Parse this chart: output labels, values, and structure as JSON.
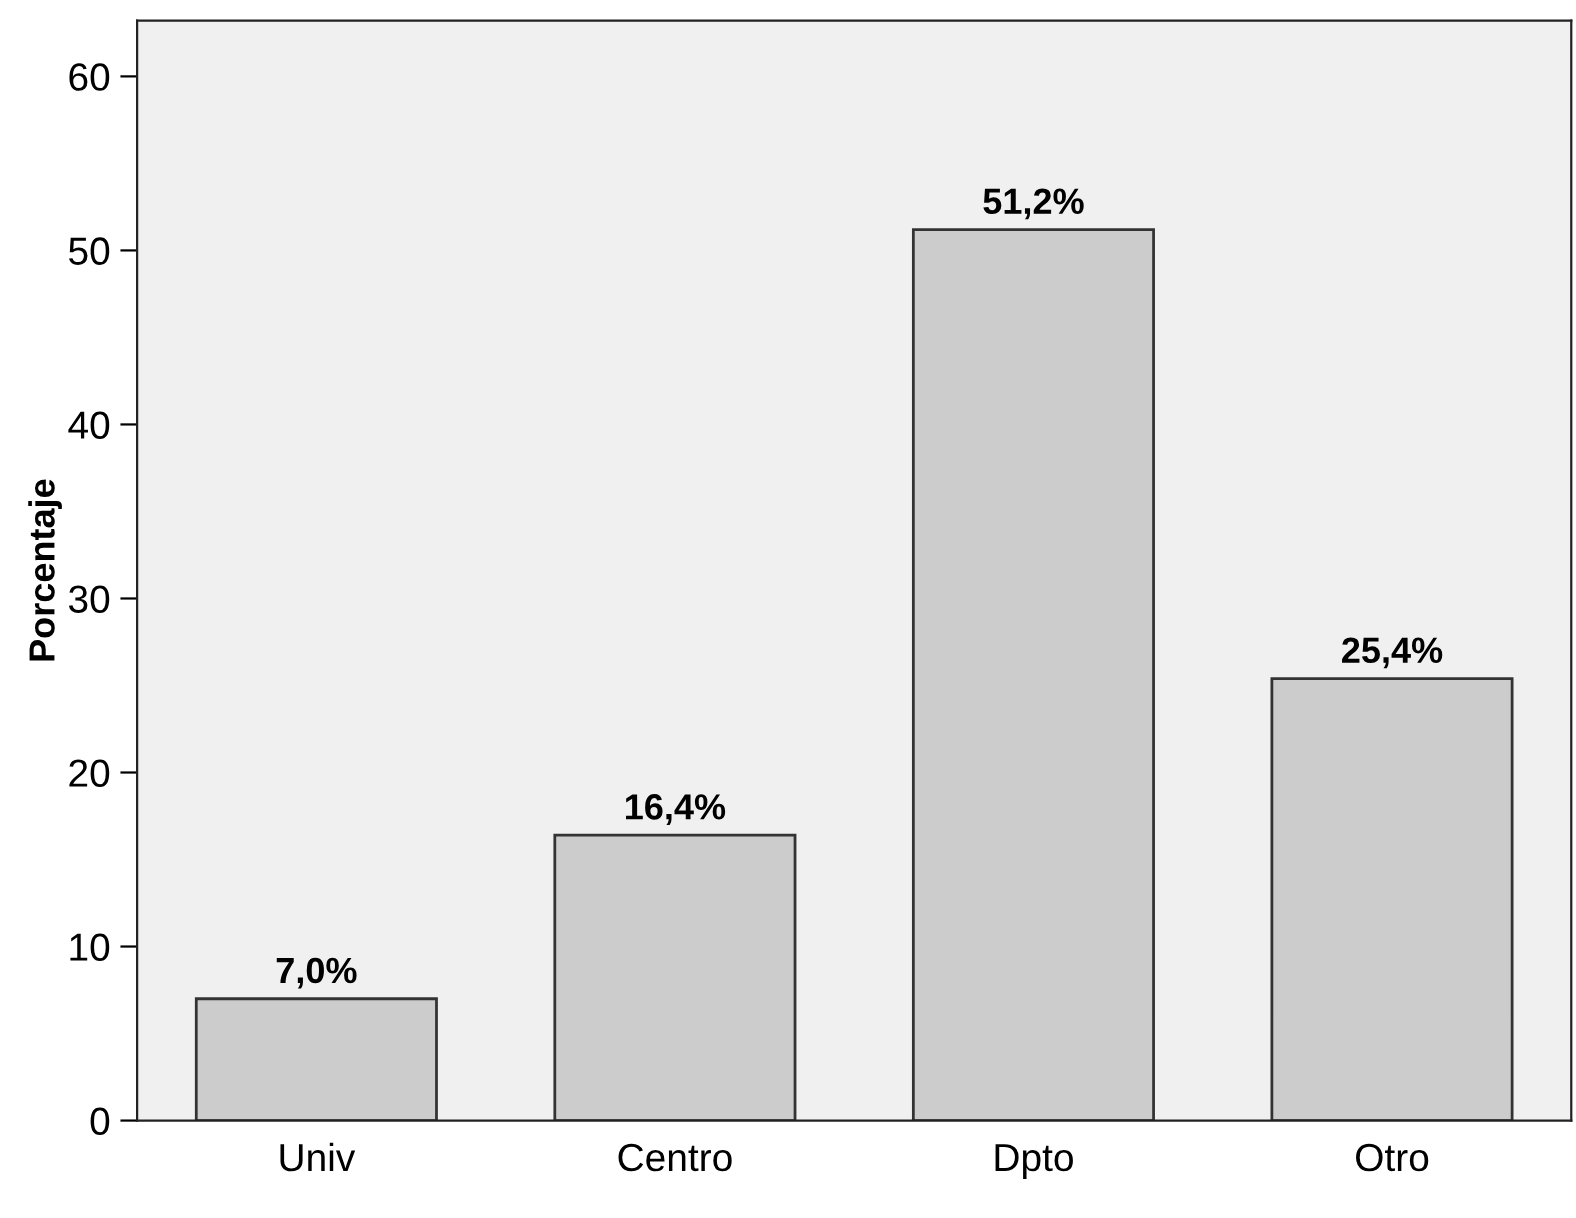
{
  "chart_data": {
    "type": "bar",
    "ylabel": "Porcentaje",
    "categories": [
      "Univ",
      "Centro",
      "Dpto",
      "Otro"
    ],
    "values": [
      7.0,
      16.4,
      51.2,
      25.4
    ],
    "value_labels": [
      "7,0%",
      "16,4%",
      "51,2%",
      "25,4%"
    ],
    "color": "#cccccc",
    "ylim": [
      0,
      63.2
    ],
    "yticks": [
      0,
      10,
      20,
      30,
      40,
      50,
      60
    ],
    "grid": false
  }
}
